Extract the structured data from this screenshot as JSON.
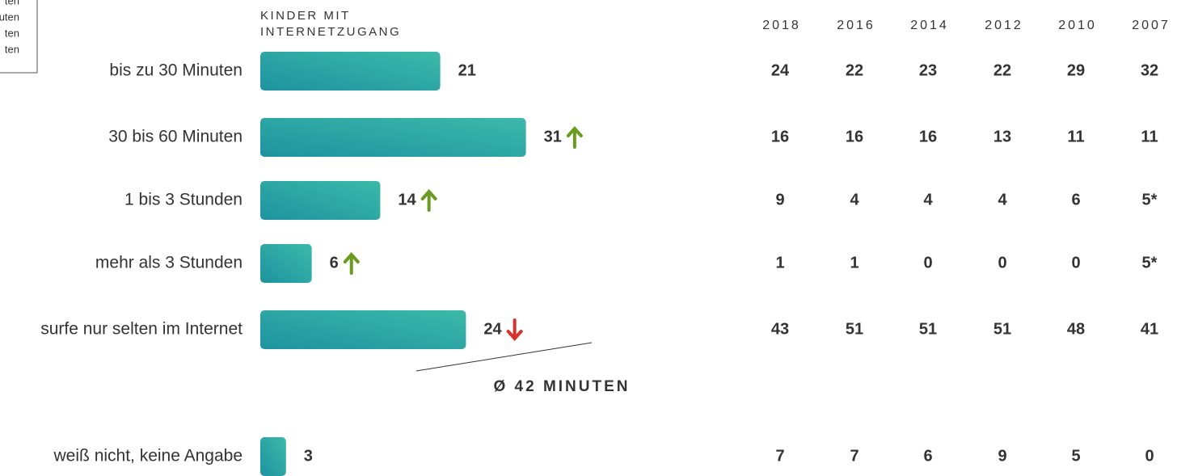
{
  "legend_fragment": [
    "ten",
    "uten",
    "ten",
    "ten"
  ],
  "chart_data": {
    "type": "bar",
    "orientation": "horizontal",
    "column_title": [
      "KINDER MIT",
      "INTERNETZUGANG"
    ],
    "categories": [
      "bis zu 30 Minuten",
      "30 bis 60 Minuten",
      "1 bis 3 Stunden",
      "mehr als 3 Stunden",
      "surfe nur selten im Internet",
      "weiß nicht, keine Angabe"
    ],
    "values": [
      21,
      31,
      14,
      6,
      24,
      3
    ],
    "color": [
      "#1e93a0",
      "#3cb9a9"
    ],
    "trend": [
      null,
      "up",
      "up",
      "up",
      "down",
      null
    ],
    "trend_colors": {
      "up": "#6a9a1f",
      "down": "#d9322b"
    },
    "annotation": "Ø 42 MINUTEN",
    "history": {
      "years": [
        "2018",
        "2016",
        "2014",
        "2012",
        "2010",
        "2007"
      ],
      "rows": [
        [
          24,
          22,
          23,
          22,
          29,
          32
        ],
        [
          16,
          16,
          16,
          13,
          11,
          11
        ],
        [
          9,
          4,
          4,
          4,
          6,
          "5*"
        ],
        [
          1,
          1,
          0,
          0,
          0,
          "5*"
        ],
        [
          43,
          51,
          51,
          51,
          48,
          41
        ],
        [
          7,
          7,
          6,
          9,
          5,
          0
        ]
      ]
    }
  }
}
